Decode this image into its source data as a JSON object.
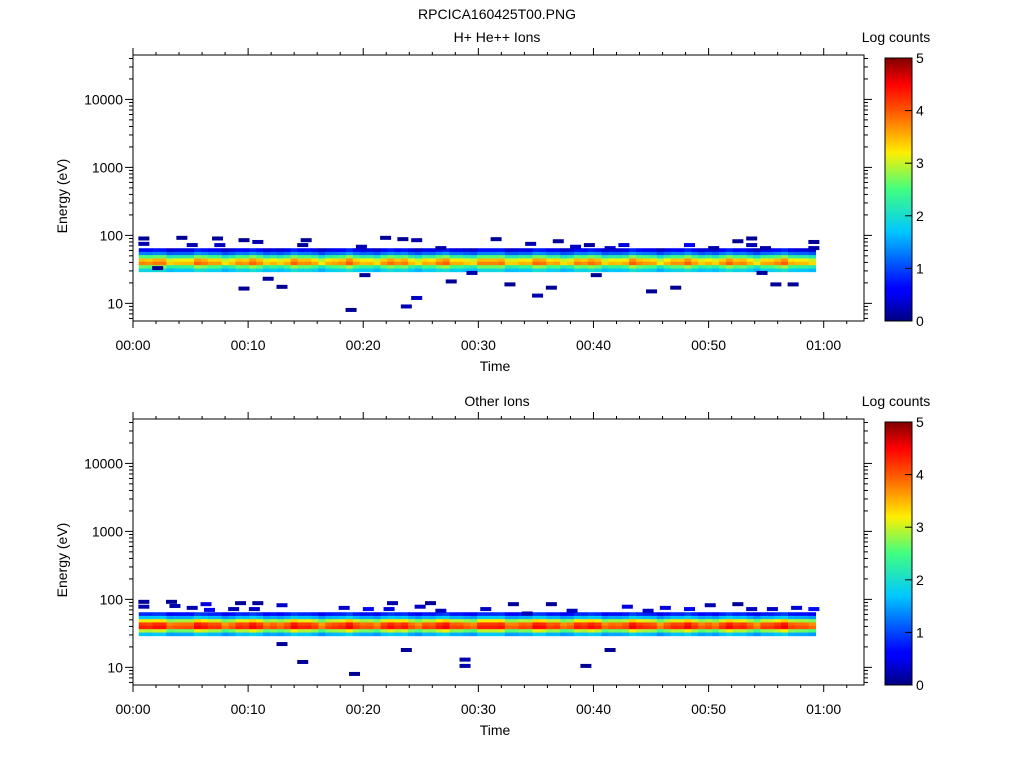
{
  "figure_title": "RPCICA160425T00.PNG",
  "chart_data": [
    {
      "type": "heatmap",
      "title": "H+ He++ Ions",
      "xlabel": "Time",
      "ylabel": "Energy (eV)",
      "x_ticks": [
        "00:00",
        "00:10",
        "00:20",
        "00:30",
        "00:40",
        "00:50",
        "01:00"
      ],
      "x_range_minutes": [
        0,
        63.5
      ],
      "y_scale": "log",
      "y_range": [
        5.5,
        45000
      ],
      "y_ticks": [
        "10",
        "100",
        "1000",
        "10000"
      ],
      "colorbar": {
        "label": "Log counts",
        "range": [
          0,
          5
        ],
        "ticks": [
          "0",
          "1",
          "2",
          "3",
          "4",
          "5"
        ]
      },
      "data_time_range_minutes": [
        0.5,
        59
      ],
      "main_band": [
        {
          "energy_eV": 31,
          "log_counts": 1.8
        },
        {
          "energy_eV": 35,
          "log_counts": 2.5
        },
        {
          "energy_eV": 39,
          "log_counts": 3.6
        },
        {
          "energy_eV": 44,
          "log_counts": 3.3
        },
        {
          "energy_eV": 49,
          "log_counts": 2.4
        },
        {
          "energy_eV": 55,
          "log_counts": 1.2
        },
        {
          "energy_eV": 61,
          "log_counts": 0.5
        }
      ],
      "sparse_pixels": [
        {
          "t": 0.9,
          "e": 90,
          "v": 0.1
        },
        {
          "t": 0.9,
          "e": 75,
          "v": 0.2
        },
        {
          "t": 2.1,
          "e": 33,
          "v": 0.1
        },
        {
          "t": 4.2,
          "e": 92,
          "v": 0.1
        },
        {
          "t": 5.1,
          "e": 72,
          "v": 0.2
        },
        {
          "t": 7.3,
          "e": 90,
          "v": 0.1
        },
        {
          "t": 7.5,
          "e": 72,
          "v": 0.3
        },
        {
          "t": 9.6,
          "e": 85,
          "v": 0.1
        },
        {
          "t": 9.6,
          "e": 16.5,
          "v": 0.1
        },
        {
          "t": 10.8,
          "e": 80,
          "v": 0.2
        },
        {
          "t": 11.7,
          "e": 23,
          "v": 0.1
        },
        {
          "t": 12.9,
          "e": 17.5,
          "v": 0.1
        },
        {
          "t": 14.7,
          "e": 72,
          "v": 0.1
        },
        {
          "t": 15.0,
          "e": 85,
          "v": 0.1
        },
        {
          "t": 18.9,
          "e": 8,
          "v": 0.1
        },
        {
          "t": 19.8,
          "e": 68,
          "v": 0.2
        },
        {
          "t": 20.1,
          "e": 26,
          "v": 0.1
        },
        {
          "t": 21.9,
          "e": 92,
          "v": 0.1
        },
        {
          "t": 23.4,
          "e": 88,
          "v": 0.1
        },
        {
          "t": 23.7,
          "e": 9,
          "v": 0.2
        },
        {
          "t": 24.6,
          "e": 12,
          "v": 0.3
        },
        {
          "t": 24.6,
          "e": 85,
          "v": 0.2
        },
        {
          "t": 26.7,
          "e": 65,
          "v": 0.2
        },
        {
          "t": 27.6,
          "e": 21,
          "v": 0.1
        },
        {
          "t": 29.4,
          "e": 28,
          "v": 0.2
        },
        {
          "t": 31.5,
          "e": 88,
          "v": 0.1
        },
        {
          "t": 32.7,
          "e": 19,
          "v": 0.1
        },
        {
          "t": 34.5,
          "e": 75,
          "v": 0.2
        },
        {
          "t": 35.1,
          "e": 13,
          "v": 0.2
        },
        {
          "t": 36.3,
          "e": 17,
          "v": 0.1
        },
        {
          "t": 36.9,
          "e": 82,
          "v": 0.1
        },
        {
          "t": 38.4,
          "e": 68,
          "v": 0.3
        },
        {
          "t": 39.6,
          "e": 72,
          "v": 0.1
        },
        {
          "t": 40.2,
          "e": 26,
          "v": 0.1
        },
        {
          "t": 41.4,
          "e": 65,
          "v": 0.3
        },
        {
          "t": 42.6,
          "e": 72,
          "v": 0.4
        },
        {
          "t": 45.0,
          "e": 15,
          "v": 0.1
        },
        {
          "t": 47.1,
          "e": 17,
          "v": 0.1
        },
        {
          "t": 48.3,
          "e": 72,
          "v": 0.5
        },
        {
          "t": 50.4,
          "e": 65,
          "v": 0.2
        },
        {
          "t": 52.5,
          "e": 82,
          "v": 0.1
        },
        {
          "t": 53.7,
          "e": 72,
          "v": 0.2
        },
        {
          "t": 53.7,
          "e": 90,
          "v": 0.1
        },
        {
          "t": 54.6,
          "e": 28,
          "v": 0.1
        },
        {
          "t": 54.9,
          "e": 65,
          "v": 0.2
        },
        {
          "t": 55.8,
          "e": 19,
          "v": 0.1
        },
        {
          "t": 57.3,
          "e": 19,
          "v": 0.1
        },
        {
          "t": 59.1,
          "e": 80,
          "v": 0.1
        },
        {
          "t": 59.1,
          "e": 65,
          "v": 0.2
        }
      ]
    },
    {
      "type": "heatmap",
      "title": "Other Ions",
      "xlabel": "Time",
      "ylabel": "Energy (eV)",
      "x_ticks": [
        "00:00",
        "00:10",
        "00:20",
        "00:30",
        "00:40",
        "00:50",
        "01:00"
      ],
      "x_range_minutes": [
        0,
        63.5
      ],
      "y_scale": "log",
      "y_range": [
        5.5,
        45000
      ],
      "y_ticks": [
        "10",
        "100",
        "1000",
        "10000"
      ],
      "colorbar": {
        "label": "Log counts",
        "range": [
          0,
          5
        ],
        "ticks": [
          "0",
          "1",
          "2",
          "3",
          "4",
          "5"
        ]
      },
      "data_time_range_minutes": [
        0.5,
        59
      ],
      "main_band": [
        {
          "energy_eV": 31,
          "log_counts": 1.6
        },
        {
          "energy_eV": 35,
          "log_counts": 2.8
        },
        {
          "energy_eV": 39,
          "log_counts": 4.2
        },
        {
          "energy_eV": 44,
          "log_counts": 4.0
        },
        {
          "energy_eV": 49,
          "log_counts": 3.0
        },
        {
          "energy_eV": 55,
          "log_counts": 1.6
        },
        {
          "energy_eV": 61,
          "log_counts": 0.7
        }
      ],
      "sparse_pixels": [
        {
          "t": 0.9,
          "e": 92,
          "v": 0.1
        },
        {
          "t": 0.9,
          "e": 78,
          "v": 0.2
        },
        {
          "t": 3.3,
          "e": 92,
          "v": 0.1
        },
        {
          "t": 3.6,
          "e": 80,
          "v": 0.2
        },
        {
          "t": 5.1,
          "e": 75,
          "v": 0.2
        },
        {
          "t": 6.3,
          "e": 85,
          "v": 0.4
        },
        {
          "t": 6.6,
          "e": 70,
          "v": 0.5
        },
        {
          "t": 8.7,
          "e": 72,
          "v": 0.2
        },
        {
          "t": 9.3,
          "e": 88,
          "v": 0.1
        },
        {
          "t": 10.5,
          "e": 72,
          "v": 0.3
        },
        {
          "t": 10.8,
          "e": 88,
          "v": 0.1
        },
        {
          "t": 12.9,
          "e": 22,
          "v": 0.1
        },
        {
          "t": 12.9,
          "e": 82,
          "v": 0.3
        },
        {
          "t": 14.7,
          "e": 12,
          "v": 0.1
        },
        {
          "t": 18.3,
          "e": 75,
          "v": 0.3
        },
        {
          "t": 19.2,
          "e": 8,
          "v": 0.1
        },
        {
          "t": 20.4,
          "e": 72,
          "v": 0.5
        },
        {
          "t": 22.2,
          "e": 72,
          "v": 0.4
        },
        {
          "t": 22.5,
          "e": 88,
          "v": 0.2
        },
        {
          "t": 23.7,
          "e": 18,
          "v": 0.1
        },
        {
          "t": 24.9,
          "e": 78,
          "v": 0.3
        },
        {
          "t": 25.8,
          "e": 88,
          "v": 0.1
        },
        {
          "t": 26.7,
          "e": 68,
          "v": 0.3
        },
        {
          "t": 28.8,
          "e": 13,
          "v": 0.2
        },
        {
          "t": 28.8,
          "e": 10.5,
          "v": 0.2
        },
        {
          "t": 30.6,
          "e": 72,
          "v": 0.3
        },
        {
          "t": 33.0,
          "e": 85,
          "v": 0.1
        },
        {
          "t": 34.2,
          "e": 62,
          "v": 0.2
        },
        {
          "t": 36.3,
          "e": 85,
          "v": 0.1
        },
        {
          "t": 38.1,
          "e": 68,
          "v": 0.3
        },
        {
          "t": 39.3,
          "e": 10.5,
          "v": 0.1
        },
        {
          "t": 41.4,
          "e": 18,
          "v": 0.1
        },
        {
          "t": 42.9,
          "e": 78,
          "v": 0.4
        },
        {
          "t": 44.7,
          "e": 68,
          "v": 0.3
        },
        {
          "t": 46.2,
          "e": 75,
          "v": 0.4
        },
        {
          "t": 48.3,
          "e": 72,
          "v": 0.5
        },
        {
          "t": 50.1,
          "e": 82,
          "v": 0.2
        },
        {
          "t": 52.5,
          "e": 85,
          "v": 0.1
        },
        {
          "t": 53.7,
          "e": 72,
          "v": 0.3
        },
        {
          "t": 55.5,
          "e": 72,
          "v": 0.3
        },
        {
          "t": 57.6,
          "e": 75,
          "v": 0.4
        },
        {
          "t": 59.1,
          "e": 72,
          "v": 0.6
        }
      ]
    }
  ]
}
